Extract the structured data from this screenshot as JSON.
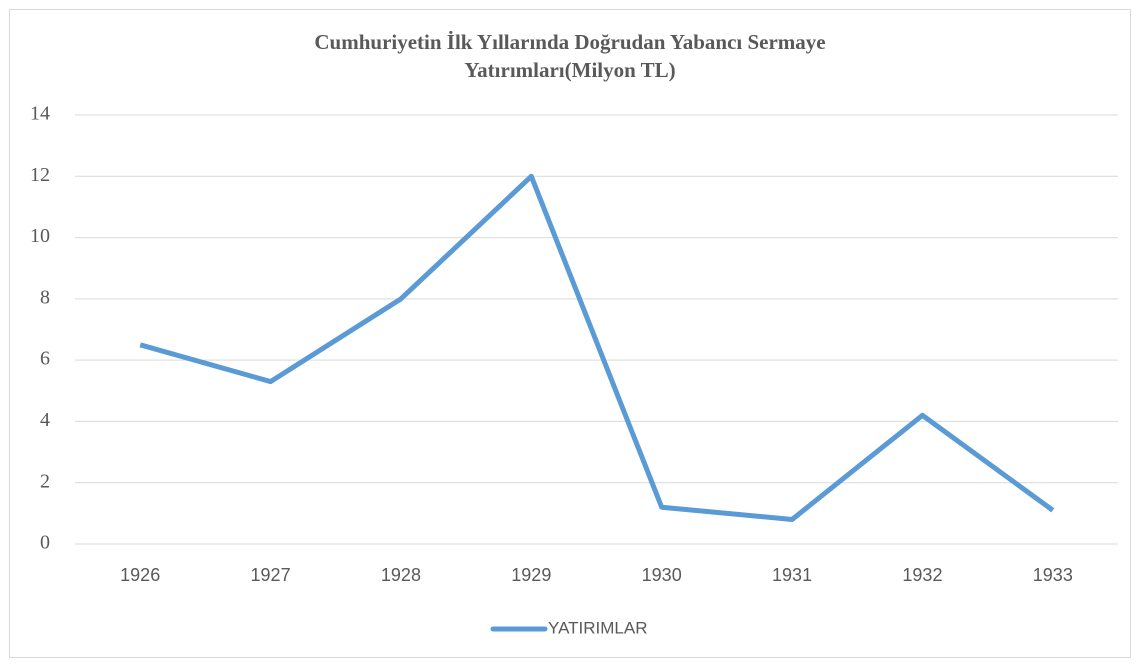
{
  "chart_data": {
    "type": "line",
    "title": "Cumhuriyetin İlk Yıllarında Doğrudan Yabancı Sermaye Yatırımları(Milyon TL)",
    "categories": [
      "1926",
      "1927",
      "1928",
      "1929",
      "1930",
      "1931",
      "1932",
      "1933"
    ],
    "series": [
      {
        "name": "YATIRIMLAR",
        "color": "#5b9bd5",
        "values": [
          6.5,
          5.3,
          8,
          12,
          1.2,
          0.8,
          4.2,
          1.1
        ]
      }
    ],
    "ylim": [
      0,
      14
    ],
    "yticks": [
      0,
      2,
      4,
      6,
      8,
      10,
      12,
      14
    ],
    "grid": true,
    "legend": "bottom"
  }
}
